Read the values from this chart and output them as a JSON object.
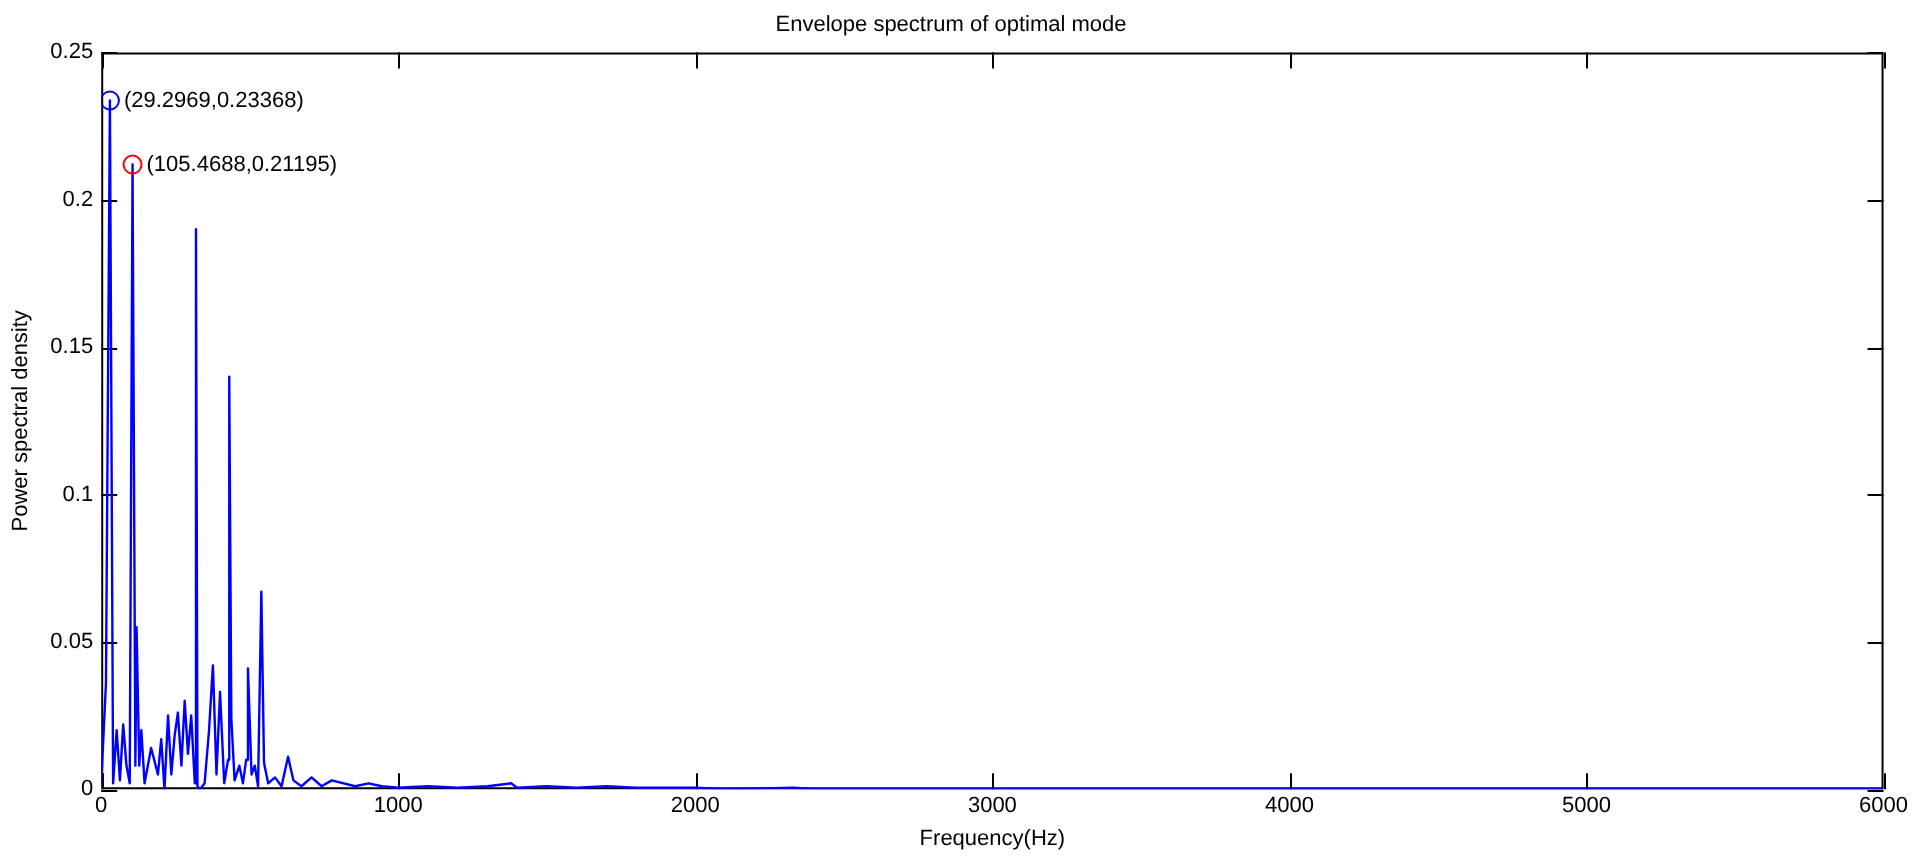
{
  "chart_data": {
    "type": "line",
    "title": "Envelope spectrum of optimal mode",
    "xlabel": "Frequency(Hz)",
    "ylabel": "Power spectral density",
    "xlim": [
      0,
      6000
    ],
    "xticks": [
      0,
      1000,
      2000,
      3000,
      4000,
      5000,
      6000
    ],
    "ylim": [
      0,
      0.25
    ],
    "yticks": [
      0,
      0.05,
      0.1,
      0.15,
      0.2,
      0.25
    ],
    "grid": false,
    "legend": false,
    "marker": "none",
    "line_style": "solid",
    "series": [
      {
        "color": "#0000ff",
        "x": [
          0,
          16,
          29.2969,
          40,
          52,
          63,
          74,
          85,
          96,
          105.4688,
          115,
          119,
          128,
          135,
          146,
          168,
          191,
          202,
          213,
          225,
          236,
          247,
          258,
          270,
          281,
          292,
          303,
          315,
          319,
          324,
          333,
          348,
          363,
          376,
          388,
          400,
          414,
          427,
          431,
          438,
          449,
          465,
          477,
          488,
          494,
          506,
          517,
          528,
          539,
          548,
          562,
          585,
          607,
          629,
          647,
          674,
          708,
          742,
          776,
          855,
          900,
          945,
          1000,
          1100,
          1200,
          1300,
          1380,
          1400,
          1500,
          1600,
          1700,
          1800,
          1900,
          2000,
          2100,
          2330,
          2400,
          3000,
          4000,
          5000,
          6000
        ],
        "values": [
          0.002,
          0.036,
          0.23368,
          0.002,
          0.02,
          0.003,
          0.022,
          0.008,
          0.002,
          0.21195,
          0.008,
          0.055,
          0.008,
          0.02,
          0.002,
          0.014,
          0.005,
          0.017,
          0,
          0.025,
          0.005,
          0.018,
          0.026,
          0.008,
          0.03,
          0.012,
          0.025,
          0.002,
          0.19,
          0.001,
          0,
          0.002,
          0.02,
          0.042,
          0.005,
          0.033,
          0.002,
          0.01,
          0.14,
          0.024,
          0.003,
          0.008,
          0.002,
          0.01,
          0.041,
          0.005,
          0.008,
          0.001,
          0.067,
          0.009,
          0.002,
          0.004,
          0.001,
          0.011,
          0.003,
          0.001,
          0.004,
          0.001,
          0.003,
          0.001,
          0.002,
          0.001,
          0.0005,
          0.001,
          0.0005,
          0.001,
          0.002,
          0.0005,
          0.001,
          0.0005,
          0.001,
          0.0005,
          0.0005,
          0.0005,
          0,
          0.0005,
          0,
          0,
          0,
          0,
          0
        ]
      },
      {
        "type": "scatter",
        "marker": "circle",
        "color": "#0000ff",
        "x": [
          29.2969
        ],
        "values": [
          0.23368
        ]
      },
      {
        "type": "scatter",
        "marker": "circle",
        "color": "#ff0000",
        "x": [
          105.4688
        ],
        "values": [
          0.21195
        ]
      }
    ],
    "annotations": [
      {
        "text": "(29.2969,0.23368)",
        "x": 29.2969,
        "y": 0.23368
      },
      {
        "text": "(105.4688,0.21195)",
        "x": 105.4688,
        "y": 0.21195
      }
    ]
  }
}
